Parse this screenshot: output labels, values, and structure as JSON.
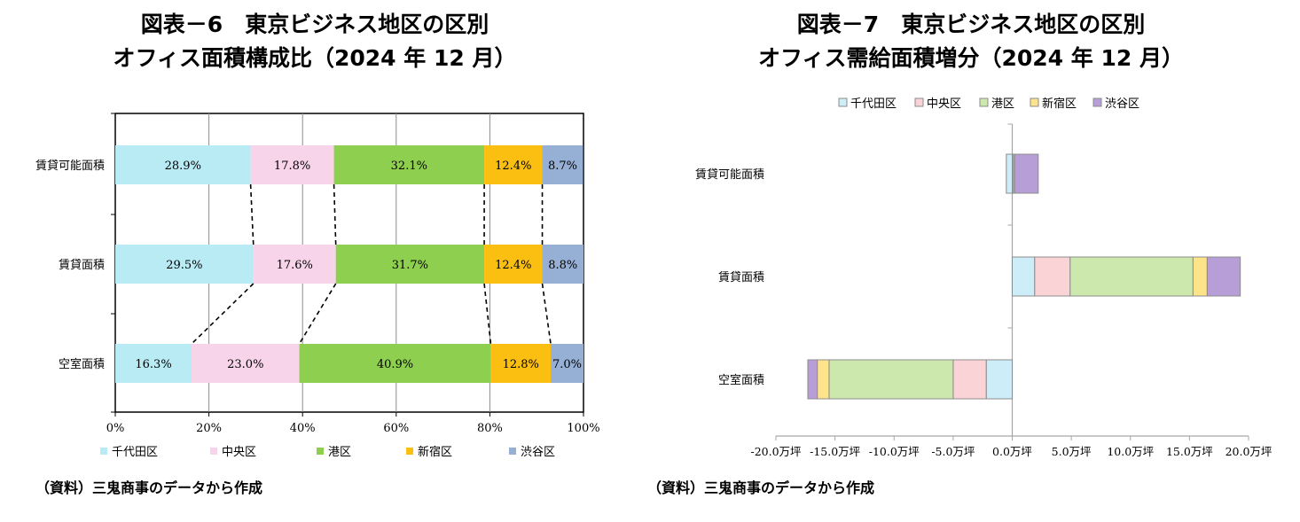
{
  "left": {
    "title_line1": "図表－6　東京ビジネス地区の区別",
    "title_line2": "オフィス面積構成比（2024 年 12 月）",
    "source": "（資料）三鬼商事のデータから作成"
  },
  "right": {
    "title_line1": "図表－7　東京ビジネス地区の区別",
    "title_line2": "オフィス需給面積増分（2024 年 12 月）",
    "source": "（資料）三鬼商事のデータから作成"
  },
  "chart_data": [
    {
      "type": "bar",
      "orientation": "horizontal",
      "stacked": "percent",
      "title": "図表－6　東京ビジネス地区の区別 オフィス面積構成比（2024 年 12 月）",
      "categories": [
        "賃貸可能面積",
        "賃貸面積",
        "空室面積"
      ],
      "series": [
        {
          "name": "千代田区",
          "values": [
            28.9,
            29.5,
            16.3
          ],
          "labels": [
            "28.9%",
            "29.5%",
            "16.3%"
          ],
          "color": "#b9ebf5"
        },
        {
          "name": "中央区",
          "values": [
            17.8,
            17.6,
            23.0
          ],
          "labels": [
            "17.8%",
            "17.6%",
            "23.0%"
          ],
          "color": "#f7d4ea"
        },
        {
          "name": "港区",
          "values": [
            32.1,
            31.7,
            40.9
          ],
          "labels": [
            "32.1%",
            "31.7%",
            "40.9%"
          ],
          "color": "#8fcf4f"
        },
        {
          "name": "新宿区",
          "values": [
            12.4,
            12.4,
            12.8
          ],
          "labels": [
            "12.4%",
            "12.4%",
            "12.8%"
          ],
          "color": "#fbbf12"
        },
        {
          "name": "渋谷区",
          "values": [
            8.7,
            8.8,
            7.0
          ],
          "labels": [
            "8.7%",
            "8.8%",
            "7.0%"
          ],
          "color": "#96afd5"
        }
      ],
      "xticks": [
        "0%",
        "20%",
        "40%",
        "60%",
        "80%",
        "100%"
      ],
      "xlim": [
        0,
        100
      ],
      "grid": true,
      "legend": "bottom"
    },
    {
      "type": "bar",
      "orientation": "horizontal",
      "stacked": true,
      "title": "図表－7　東京ビジネス地区の区別 オフィス需給面積増分（2024 年 12 月）",
      "categories": [
        "賃貸可能面積",
        "賃貸面積",
        "空室面積"
      ],
      "series": [
        {
          "name": "千代田区",
          "values": [
            -0.5,
            1.9,
            -2.2
          ],
          "color": "#cdeef9"
        },
        {
          "name": "中央区",
          "values": [
            0.1,
            3.0,
            -2.8
          ],
          "color": "#fad3d6"
        },
        {
          "name": "港区",
          "values": [
            0.0,
            10.4,
            -10.5
          ],
          "color": "#cde8ad"
        },
        {
          "name": "新宿区",
          "values": [
            0.1,
            1.2,
            -1.0
          ],
          "color": "#fde48a"
        },
        {
          "name": "渋谷区",
          "values": [
            2.0,
            2.8,
            -0.8
          ],
          "color": "#b79ed6"
        }
      ],
      "xticks": [
        "-20.0万坪",
        "-15.0万坪",
        "-10.0万坪",
        "-5.0万坪",
        "0.0万坪",
        "5.0万坪",
        "10.0万坪",
        "15.0万坪",
        "20.0万坪"
      ],
      "xlim": [
        -20,
        20
      ],
      "grid": false,
      "legend": "top"
    }
  ]
}
